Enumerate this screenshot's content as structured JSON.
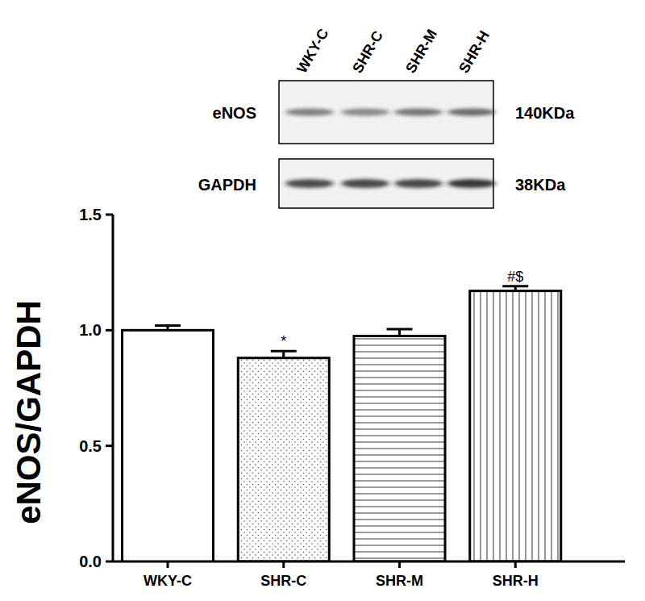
{
  "chart_data": {
    "type": "bar",
    "y_label": "eNOS/GAPDH",
    "categories": [
      "WKY-C",
      "SHR-C",
      "SHR-M",
      "SHR-H"
    ],
    "values": [
      1.0,
      0.88,
      0.975,
      1.17
    ],
    "errors": [
      0.02,
      0.03,
      0.03,
      0.02
    ],
    "significance": [
      null,
      "*",
      null,
      "#$"
    ],
    "ylim": [
      0,
      1.5
    ],
    "yticks": [
      {
        "value": 0,
        "label": "0.0"
      },
      {
        "value": 0.5,
        "label": "0.5"
      },
      {
        "value": 1.0,
        "label": "1.0"
      },
      {
        "value": 1.5,
        "label": "1.5"
      }
    ],
    "blot": {
      "rows": [
        {
          "label": "eNOS",
          "size": "140KDa"
        },
        {
          "label": "GAPDH",
          "size": "38KDa"
        }
      ]
    }
  }
}
